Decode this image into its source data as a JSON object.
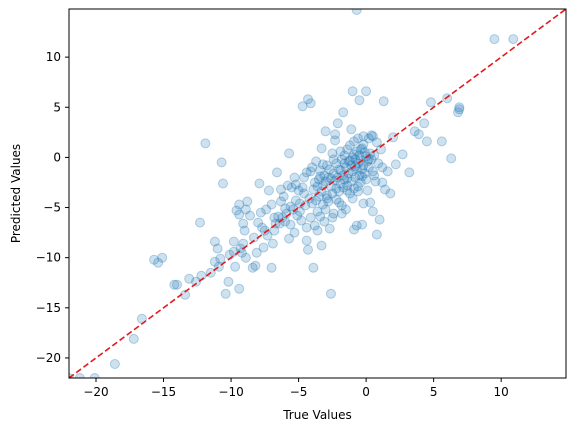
{
  "chart_data": {
    "type": "scatter",
    "title": "",
    "xlabel": "True Values",
    "ylabel": "Predicted Values",
    "xlim": [
      -22,
      14.8
    ],
    "ylim": [
      -22,
      14.8
    ],
    "xticks": [
      -20,
      -15,
      -10,
      -5,
      0,
      5,
      10
    ],
    "yticks": [
      -20,
      -15,
      -10,
      -5,
      0,
      5,
      10
    ],
    "grid": false,
    "point_color": "#1f77b4",
    "point_alpha": 0.22,
    "reference_line": {
      "style": "dashed",
      "color": "#e31a1c",
      "from": [
        -22,
        -22
      ],
      "to": [
        14.8,
        14.8
      ]
    },
    "series": [
      {
        "points": [
          [
            -22.0,
            -22.0
          ],
          [
            -21.2,
            -22.0
          ],
          [
            -20.1,
            -22.0
          ],
          [
            -18.6,
            -20.6
          ],
          [
            -17.2,
            -18.1
          ],
          [
            -16.6,
            -16.1
          ],
          [
            -15.7,
            -10.2
          ],
          [
            -15.4,
            -10.5
          ],
          [
            -15.1,
            -10.0
          ],
          [
            -14.2,
            -12.7
          ],
          [
            -14.0,
            -12.7
          ],
          [
            -13.4,
            -13.7
          ],
          [
            -13.1,
            -12.1
          ],
          [
            -12.6,
            -12.4
          ],
          [
            -12.2,
            -11.8
          ],
          [
            -12.3,
            -6.5
          ],
          [
            -11.5,
            -11.5
          ],
          [
            -11.9,
            1.4
          ],
          [
            -11.2,
            -8.4
          ],
          [
            -11.0,
            -9.1
          ],
          [
            -10.8,
            -10.1
          ],
          [
            -10.7,
            -0.5
          ],
          [
            -10.6,
            -2.6
          ],
          [
            -10.4,
            -13.6
          ],
          [
            -10.2,
            -12.4
          ],
          [
            -10.1,
            -9.7
          ],
          [
            -9.8,
            -8.4
          ],
          [
            -9.7,
            -10.9
          ],
          [
            -9.6,
            -5.3
          ],
          [
            -9.4,
            -13.1
          ],
          [
            -9.4,
            -5.7
          ],
          [
            -9.4,
            -4.7
          ],
          [
            -9.3,
            -9.1
          ],
          [
            -9.2,
            -9.5
          ],
          [
            -9.1,
            -8.6
          ],
          [
            -9.0,
            -7.3
          ],
          [
            -8.9,
            -5.2
          ],
          [
            -8.8,
            -4.4
          ],
          [
            -8.6,
            -5.8
          ],
          [
            -8.4,
            -11.0
          ],
          [
            -8.2,
            -10.8
          ],
          [
            -8.1,
            -9.5
          ],
          [
            -8.0,
            -6.5
          ],
          [
            -7.9,
            -2.6
          ],
          [
            -7.8,
            -5.5
          ],
          [
            -7.7,
            -7.0
          ],
          [
            -7.6,
            -9.0
          ],
          [
            -7.4,
            -5.2
          ],
          [
            -7.3,
            -7.8
          ],
          [
            -7.2,
            -3.3
          ],
          [
            -7.0,
            -11.0
          ],
          [
            -6.9,
            -8.6
          ],
          [
            -6.8,
            -7.3
          ],
          [
            -6.7,
            -6.6
          ],
          [
            -6.6,
            -1.5
          ],
          [
            -6.5,
            -5.9
          ],
          [
            -6.4,
            -6.6
          ],
          [
            -6.3,
            -4.4
          ],
          [
            -6.2,
            -6.0
          ],
          [
            -6.1,
            -3.9
          ],
          [
            -6.0,
            -6.4
          ],
          [
            -5.9,
            -5.6
          ],
          [
            -5.8,
            -2.8
          ],
          [
            -5.7,
            0.4
          ],
          [
            -5.6,
            -4.9
          ],
          [
            -5.6,
            -6.7
          ],
          [
            -5.5,
            -3.0
          ],
          [
            -5.4,
            -5.2
          ],
          [
            -5.3,
            -7.5
          ],
          [
            -5.2,
            -4.3
          ],
          [
            -5.1,
            -5.8
          ],
          [
            -5.0,
            -3.3
          ],
          [
            -4.9,
            -4.6
          ],
          [
            -4.8,
            -6.3
          ],
          [
            -4.7,
            -3.0
          ],
          [
            -4.7,
            5.1
          ],
          [
            -4.6,
            -2.0
          ],
          [
            -4.5,
            -4.8
          ],
          [
            -4.4,
            -1.5
          ],
          [
            -4.4,
            -8.3
          ],
          [
            -4.3,
            5.8
          ],
          [
            -4.3,
            -9.2
          ],
          [
            -4.2,
            -4.1
          ],
          [
            -4.1,
            5.4
          ],
          [
            -4.1,
            -6.0
          ],
          [
            -4.0,
            -1.0
          ],
          [
            -4.0,
            -4.6
          ],
          [
            -3.9,
            -11.0
          ],
          [
            -3.9,
            -3.2
          ],
          [
            -3.8,
            -2.5
          ],
          [
            -3.8,
            -6.8
          ],
          [
            -3.7,
            -0.4
          ],
          [
            -3.6,
            -5.4
          ],
          [
            -3.6,
            -7.3
          ],
          [
            -3.5,
            -2.2
          ],
          [
            -3.5,
            -3.9
          ],
          [
            -3.4,
            -1.3
          ],
          [
            -3.4,
            -5.9
          ],
          [
            -3.3,
            0.9
          ],
          [
            -3.3,
            -3.4
          ],
          [
            -3.2,
            -2.8
          ],
          [
            -3.2,
            -4.7
          ],
          [
            -3.1,
            -1.8
          ],
          [
            -3.1,
            -6.4
          ],
          [
            -3.0,
            -2.4
          ],
          [
            -3.0,
            -5.2
          ],
          [
            -2.9,
            -0.8
          ],
          [
            -2.9,
            -3.8
          ],
          [
            -2.8,
            -2.0
          ],
          [
            -2.8,
            -4.4
          ],
          [
            -2.7,
            -1.2
          ],
          [
            -2.7,
            -7.1
          ],
          [
            -2.6,
            -2.9
          ],
          [
            -2.6,
            -13.6
          ],
          [
            -2.5,
            0.4
          ],
          [
            -2.5,
            -3.6
          ],
          [
            -2.4,
            -1.6
          ],
          [
            -2.4,
            -5.6
          ],
          [
            -2.3,
            2.3
          ],
          [
            -2.3,
            -2.3
          ],
          [
            -2.2,
            -0.6
          ],
          [
            -2.2,
            -4.2
          ],
          [
            -2.1,
            3.4
          ],
          [
            -2.1,
            -2.0
          ],
          [
            -2.0,
            -1.2
          ],
          [
            -2.0,
            -3.4
          ],
          [
            -1.9,
            0.6
          ],
          [
            -1.9,
            -2.6
          ],
          [
            -1.8,
            -0.2
          ],
          [
            -1.8,
            -4.8
          ],
          [
            -1.7,
            -1.8
          ],
          [
            -1.7,
            -3.0
          ],
          [
            -1.6,
            0.2
          ],
          [
            -1.6,
            -2.2
          ],
          [
            -1.5,
            -1.0
          ],
          [
            -1.5,
            -5.2
          ],
          [
            -1.4,
            0.8
          ],
          [
            -1.4,
            -2.8
          ],
          [
            -1.3,
            -0.4
          ],
          [
            -1.3,
            -1.6
          ],
          [
            -1.2,
            1.2
          ],
          [
            -1.2,
            -3.6
          ],
          [
            -1.1,
            -0.8
          ],
          [
            -1.1,
            -2.4
          ],
          [
            -1.0,
            0.0
          ],
          [
            -1.0,
            -1.4
          ],
          [
            -1.0,
            6.6
          ],
          [
            -0.9,
            1.6
          ],
          [
            -0.9,
            -3.1
          ],
          [
            -0.9,
            -7.2
          ],
          [
            -0.8,
            -0.2
          ],
          [
            -0.8,
            -2.0
          ],
          [
            -0.7,
            0.6
          ],
          [
            -0.7,
            -1.1
          ],
          [
            -0.7,
            -6.8
          ],
          [
            -0.6,
            1.9
          ],
          [
            -0.6,
            -0.6
          ],
          [
            -0.6,
            -3.4
          ],
          [
            -0.5,
            0.2
          ],
          [
            -0.5,
            -1.8
          ],
          [
            -0.5,
            5.7
          ],
          [
            -0.4,
            -0.3
          ],
          [
            -0.4,
            -2.5
          ],
          [
            -0.3,
            0.9
          ],
          [
            -0.3,
            -1.2
          ],
          [
            -0.3,
            -6.7
          ],
          [
            -0.2,
            1.3
          ],
          [
            -0.2,
            -0.8
          ],
          [
            -0.2,
            -4.6
          ],
          [
            -0.1,
            0.5
          ],
          [
            -0.1,
            -1.6
          ],
          [
            0.0,
            0.1
          ],
          [
            0.0,
            -2.2
          ],
          [
            0.0,
            6.6
          ],
          [
            0.1,
            -0.4
          ],
          [
            0.1,
            -3.3
          ],
          [
            0.2,
            1.9
          ],
          [
            0.2,
            -1.0
          ],
          [
            0.3,
            0.4
          ],
          [
            0.3,
            -4.5
          ],
          [
            0.4,
            -0.2
          ],
          [
            0.4,
            2.2
          ],
          [
            0.5,
            -1.4
          ],
          [
            0.5,
            -5.4
          ],
          [
            0.6,
            0.2
          ],
          [
            0.7,
            -2.4
          ],
          [
            0.8,
            1.5
          ],
          [
            0.8,
            -7.7
          ],
          [
            0.9,
            -0.6
          ],
          [
            1.0,
            -6.2
          ],
          [
            1.1,
            0.8
          ],
          [
            1.2,
            -2.5
          ],
          [
            1.3,
            5.6
          ],
          [
            1.4,
            -3.2
          ],
          [
            1.6,
            -1.4
          ],
          [
            1.8,
            -3.6
          ],
          [
            2.0,
            2.0
          ],
          [
            2.2,
            -0.7
          ],
          [
            2.7,
            0.3
          ],
          [
            3.2,
            -1.5
          ],
          [
            3.6,
            2.6
          ],
          [
            3.9,
            2.3
          ],
          [
            4.3,
            3.4
          ],
          [
            4.5,
            1.6
          ],
          [
            4.8,
            5.5
          ],
          [
            5.6,
            1.6
          ],
          [
            6.0,
            5.9
          ],
          [
            6.3,
            -0.1
          ],
          [
            6.8,
            4.5
          ],
          [
            6.9,
            5.0
          ],
          [
            6.9,
            4.8
          ],
          [
            9.5,
            11.8
          ],
          [
            10.9,
            11.8
          ],
          [
            -0.7,
            14.7
          ],
          [
            -3.0,
            2.6
          ],
          [
            -2.3,
            1.7
          ],
          [
            -1.1,
            2.8
          ],
          [
            -1.7,
            4.5
          ],
          [
            -0.2,
            2.1
          ],
          [
            0.5,
            2.1
          ],
          [
            -3.4,
            -1.9
          ],
          [
            -2.2,
            -3.1
          ],
          [
            -1.4,
            -2.1
          ],
          [
            -0.8,
            -0.9
          ],
          [
            -0.3,
            -1.9
          ],
          [
            -1.9,
            -1.3
          ],
          [
            -2.6,
            -2.1
          ],
          [
            -3.2,
            -0.7
          ],
          [
            -1.2,
            -0.3
          ],
          [
            -0.4,
            0.8
          ],
          [
            0.2,
            -0.2
          ],
          [
            -0.9,
            0.3
          ],
          [
            -1.6,
            -0.6
          ],
          [
            -2.4,
            -0.2
          ],
          [
            -4.6,
            -3.6
          ],
          [
            -5.2,
            -2.7
          ],
          [
            -4.9,
            -5.4
          ],
          [
            -3.7,
            -4.3
          ],
          [
            -6.8,
            -6.0
          ],
          [
            -7.5,
            -7.3
          ],
          [
            -8.3,
            -8.0
          ],
          [
            -9.8,
            -9.4
          ],
          [
            -11.2,
            -10.4
          ],
          [
            -10.9,
            -10.9
          ],
          [
            -4.1,
            -1.4
          ],
          [
            -3.6,
            -2.9
          ],
          [
            -2.9,
            -4.1
          ],
          [
            -2.0,
            -4.5
          ],
          [
            -1.4,
            -3.3
          ],
          [
            -0.6,
            -2.9
          ],
          [
            0.6,
            -1.8
          ],
          [
            1.2,
            -1.0
          ],
          [
            -5.7,
            -8.1
          ],
          [
            -4.4,
            -7.0
          ],
          [
            -3.3,
            -8.8
          ],
          [
            -2.5,
            -6.0
          ],
          [
            -1.8,
            -5.6
          ],
          [
            -1.0,
            -4.1
          ],
          [
            -7.0,
            -4.7
          ],
          [
            -6.3,
            -3.2
          ],
          [
            -5.3,
            -2.0
          ],
          [
            -6.0,
            -5.1
          ],
          [
            -8.9,
            -10.0
          ],
          [
            -9.1,
            -6.6
          ]
        ]
      }
    ]
  }
}
